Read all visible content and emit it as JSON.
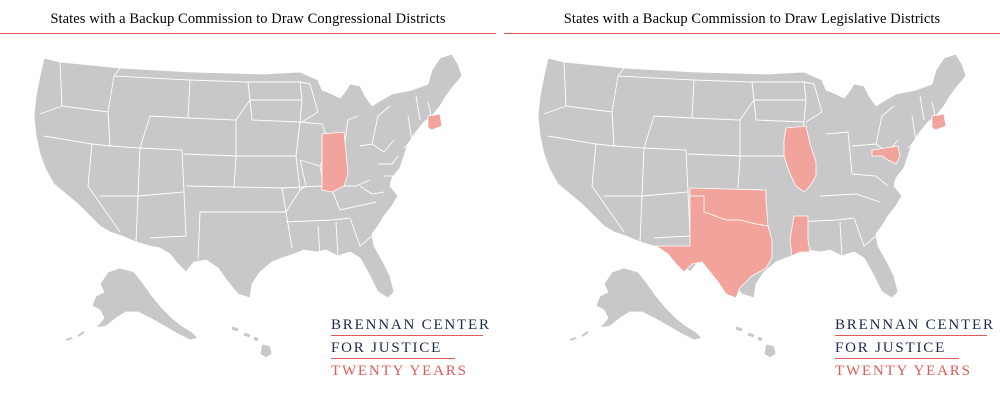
{
  "maps": [
    {
      "title": "States with a Backup Commission to Draw Congressional Districts",
      "highlighted_states": [
        "Indiana",
        "Connecticut"
      ]
    },
    {
      "title": "States with a Backup Commission to Draw Legislative Districts",
      "highlighted_states": [
        "Illinois",
        "Texas",
        "Oklahoma",
        "Mississippi",
        "Maryland",
        "Connecticut"
      ]
    }
  ],
  "logo": {
    "line1": "BRENNAN CENTER",
    "line2": "FOR JUSTICE",
    "line3": "TWENTY YEARS"
  },
  "colors": {
    "base_state": "#c8c8cb",
    "highlight_state": "#f2a39b",
    "border": "#ffffff",
    "rule": "#e05a58",
    "logo_navy": "#1f2a4a",
    "logo_red": "#e05a58"
  }
}
